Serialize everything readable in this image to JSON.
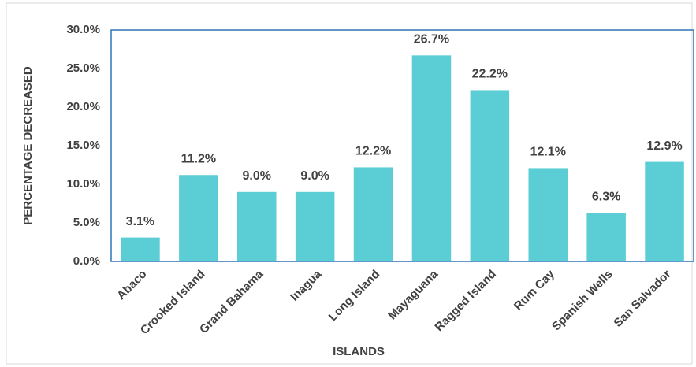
{
  "chart_data": {
    "type": "bar",
    "x_label": "ISLANDS",
    "y_label": "PERCENTAGE DECREASED",
    "categories": [
      "Abaco",
      "Crooked Island",
      "Grand Bahama",
      "Inagua",
      "Long Island",
      "Mayaguana",
      "Ragged Island",
      "Rum Cay",
      "Spanish Wells",
      "San Salvador"
    ],
    "values": [
      3.1,
      11.2,
      9.0,
      9.0,
      12.2,
      26.7,
      22.2,
      12.1,
      6.3,
      12.9
    ],
    "value_labels": [
      "3.1%",
      "11.2%",
      "9.0%",
      "9.0%",
      "12.2%",
      "26.7%",
      "22.2%",
      "12.1%",
      "6.3%",
      "12.9%"
    ],
    "color": "#5bcdd4",
    "ylim": [
      0,
      30
    ],
    "yticks": [
      {
        "value": 0,
        "label": "0.0%"
      },
      {
        "value": 5,
        "label": "5.0%"
      },
      {
        "value": 10,
        "label": "10.0%"
      },
      {
        "value": 15,
        "label": "15.0%"
      },
      {
        "value": 20,
        "label": "20.0%"
      },
      {
        "value": 25,
        "label": "25.0%"
      },
      {
        "value": 30,
        "label": "30.0%"
      }
    ],
    "grid": false
  }
}
